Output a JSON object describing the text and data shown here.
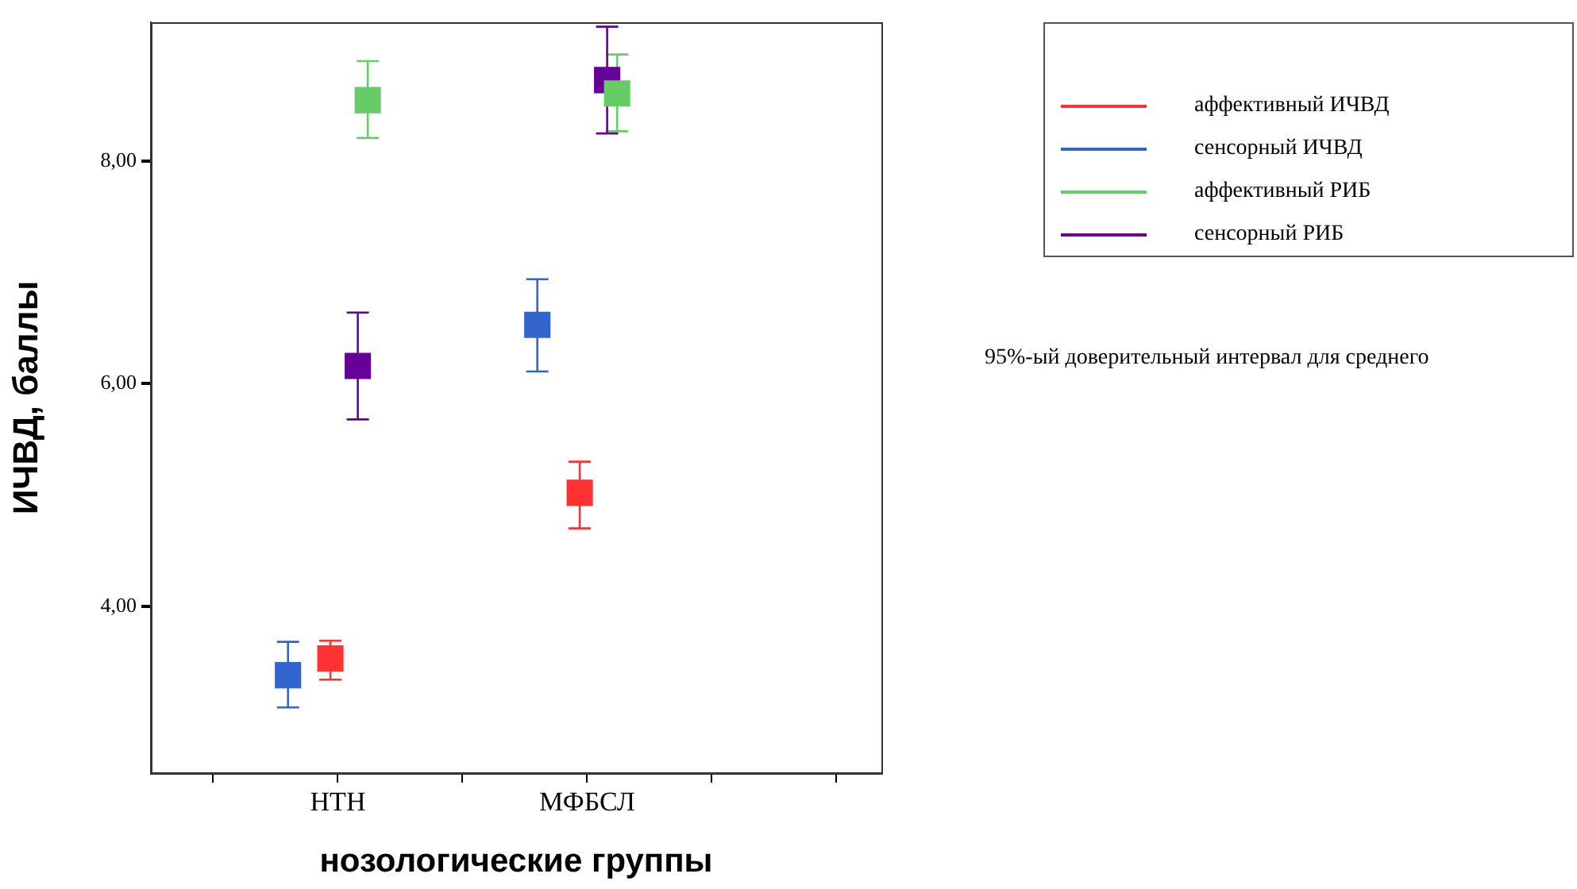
{
  "chart_data": {
    "type": "scatter",
    "xlabel": "нозологические группы",
    "ylabel": "ИЧВД, баллы",
    "categories": [
      "НТН",
      "МФБСЛ"
    ],
    "ylim": [
      2.5,
      9.25
    ],
    "yticks": [
      {
        "value": 4,
        "label": "4,00"
      },
      {
        "value": 6,
        "label": "6,00"
      },
      {
        "value": 8,
        "label": "8,00"
      }
    ],
    "grid": false,
    "legend": "right",
    "marker": "square",
    "annotations": [
      "95%-ый доверительный интервал для среднего"
    ],
    "series": [
      {
        "name": "аффективный ИЧВД",
        "color": "#ff3333",
        "values": [
          3.53,
          5.02
        ],
        "errors": [
          [
            3.34,
            3.69
          ],
          [
            4.7,
            5.3
          ]
        ]
      },
      {
        "name": "сенсорный ИЧВД",
        "color": "#3366cc",
        "values": [
          3.38,
          6.53
        ],
        "errors": [
          [
            3.09,
            3.68
          ],
          [
            6.11,
            6.94
          ]
        ]
      },
      {
        "name": "аффективный РИБ",
        "color": "#66cc66",
        "values": [
          8.55,
          8.61
        ],
        "errors": [
          [
            8.21,
            8.9
          ],
          [
            8.27,
            8.96
          ]
        ]
      },
      {
        "name": "сенсорный РИБ",
        "color": "#660099",
        "values": [
          6.16,
          8.73
        ],
        "errors": [
          [
            5.68,
            6.64
          ],
          [
            8.25,
            9.21
          ]
        ]
      }
    ]
  }
}
